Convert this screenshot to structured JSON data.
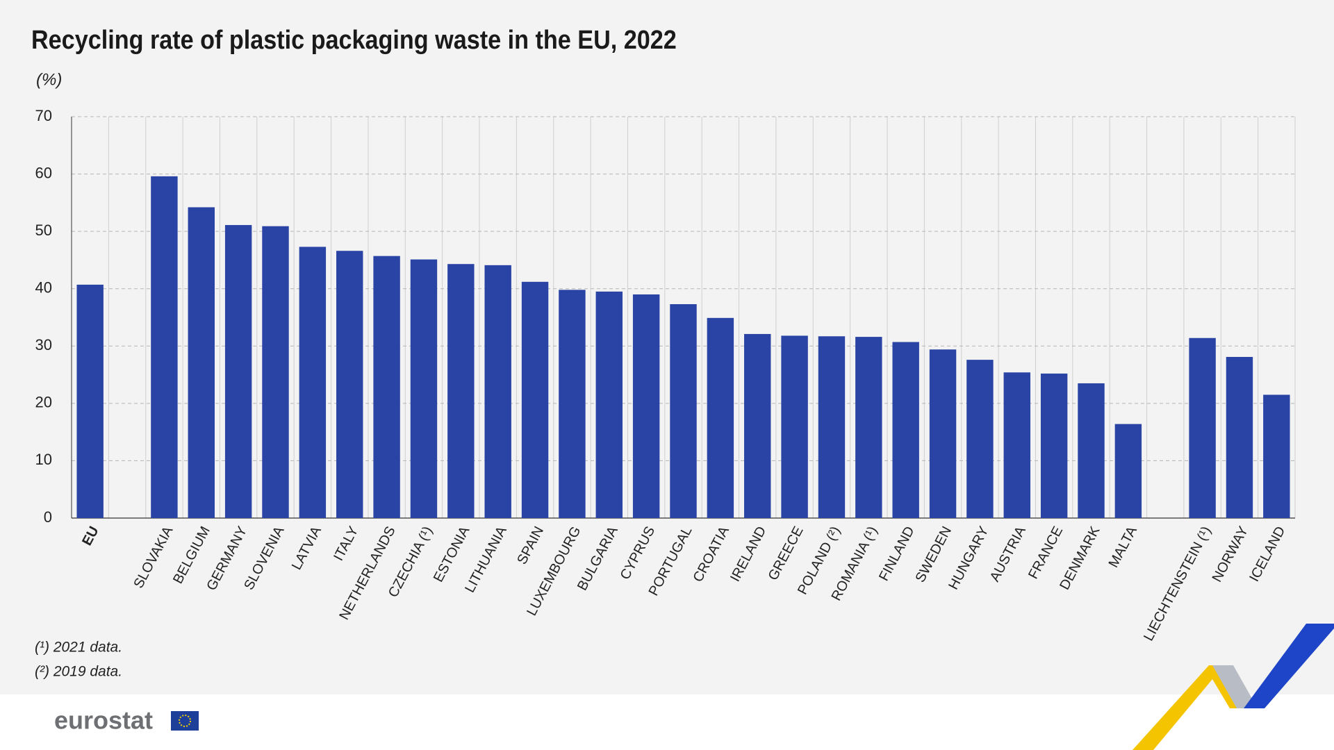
{
  "chart_data": {
    "type": "bar",
    "title": "Recycling rate of plastic packaging waste in the EU, 2022",
    "subtitle": "(%)",
    "categories": [
      "EU",
      null,
      "SLOVAKIA",
      "BELGIUM",
      "GERMANY",
      "SLOVENIA",
      "LATVIA",
      "ITALY",
      "NETHERLANDS",
      "CZECHIA (¹)",
      "ESTONIA",
      "LITHUANIA",
      "SPAIN",
      "LUXEMBOURG",
      "BULGARIA",
      "CYPRUS",
      "PORTUGAL",
      "CROATIA",
      "IRELAND",
      "GREECE",
      "POLAND (²)",
      "ROMANIA (¹)",
      "FINLAND",
      "SWEDEN",
      "HUNGARY",
      "AUSTRIA",
      "FRANCE",
      "DENMARK",
      "MALTA",
      null,
      "LIECHTENSTEIN (¹)",
      "NORWAY",
      "ICELAND"
    ],
    "values": [
      40.7,
      null,
      59.6,
      54.2,
      51.1,
      50.9,
      47.3,
      46.6,
      45.7,
      45.1,
      44.3,
      44.1,
      41.2,
      39.8,
      39.5,
      39.0,
      37.3,
      34.9,
      32.1,
      31.8,
      31.7,
      31.6,
      30.7,
      29.4,
      27.6,
      25.4,
      25.2,
      23.5,
      16.4,
      null,
      31.4,
      28.1,
      21.5
    ],
    "color": "#2a44a5",
    "ylim": [
      0,
      70
    ],
    "yticks": [
      0,
      10,
      20,
      30,
      40,
      50,
      60,
      70
    ],
    "grid": true,
    "notes": [
      "(¹) 2021 data.",
      "(²) 2019 data."
    ],
    "source": "eurostat"
  }
}
